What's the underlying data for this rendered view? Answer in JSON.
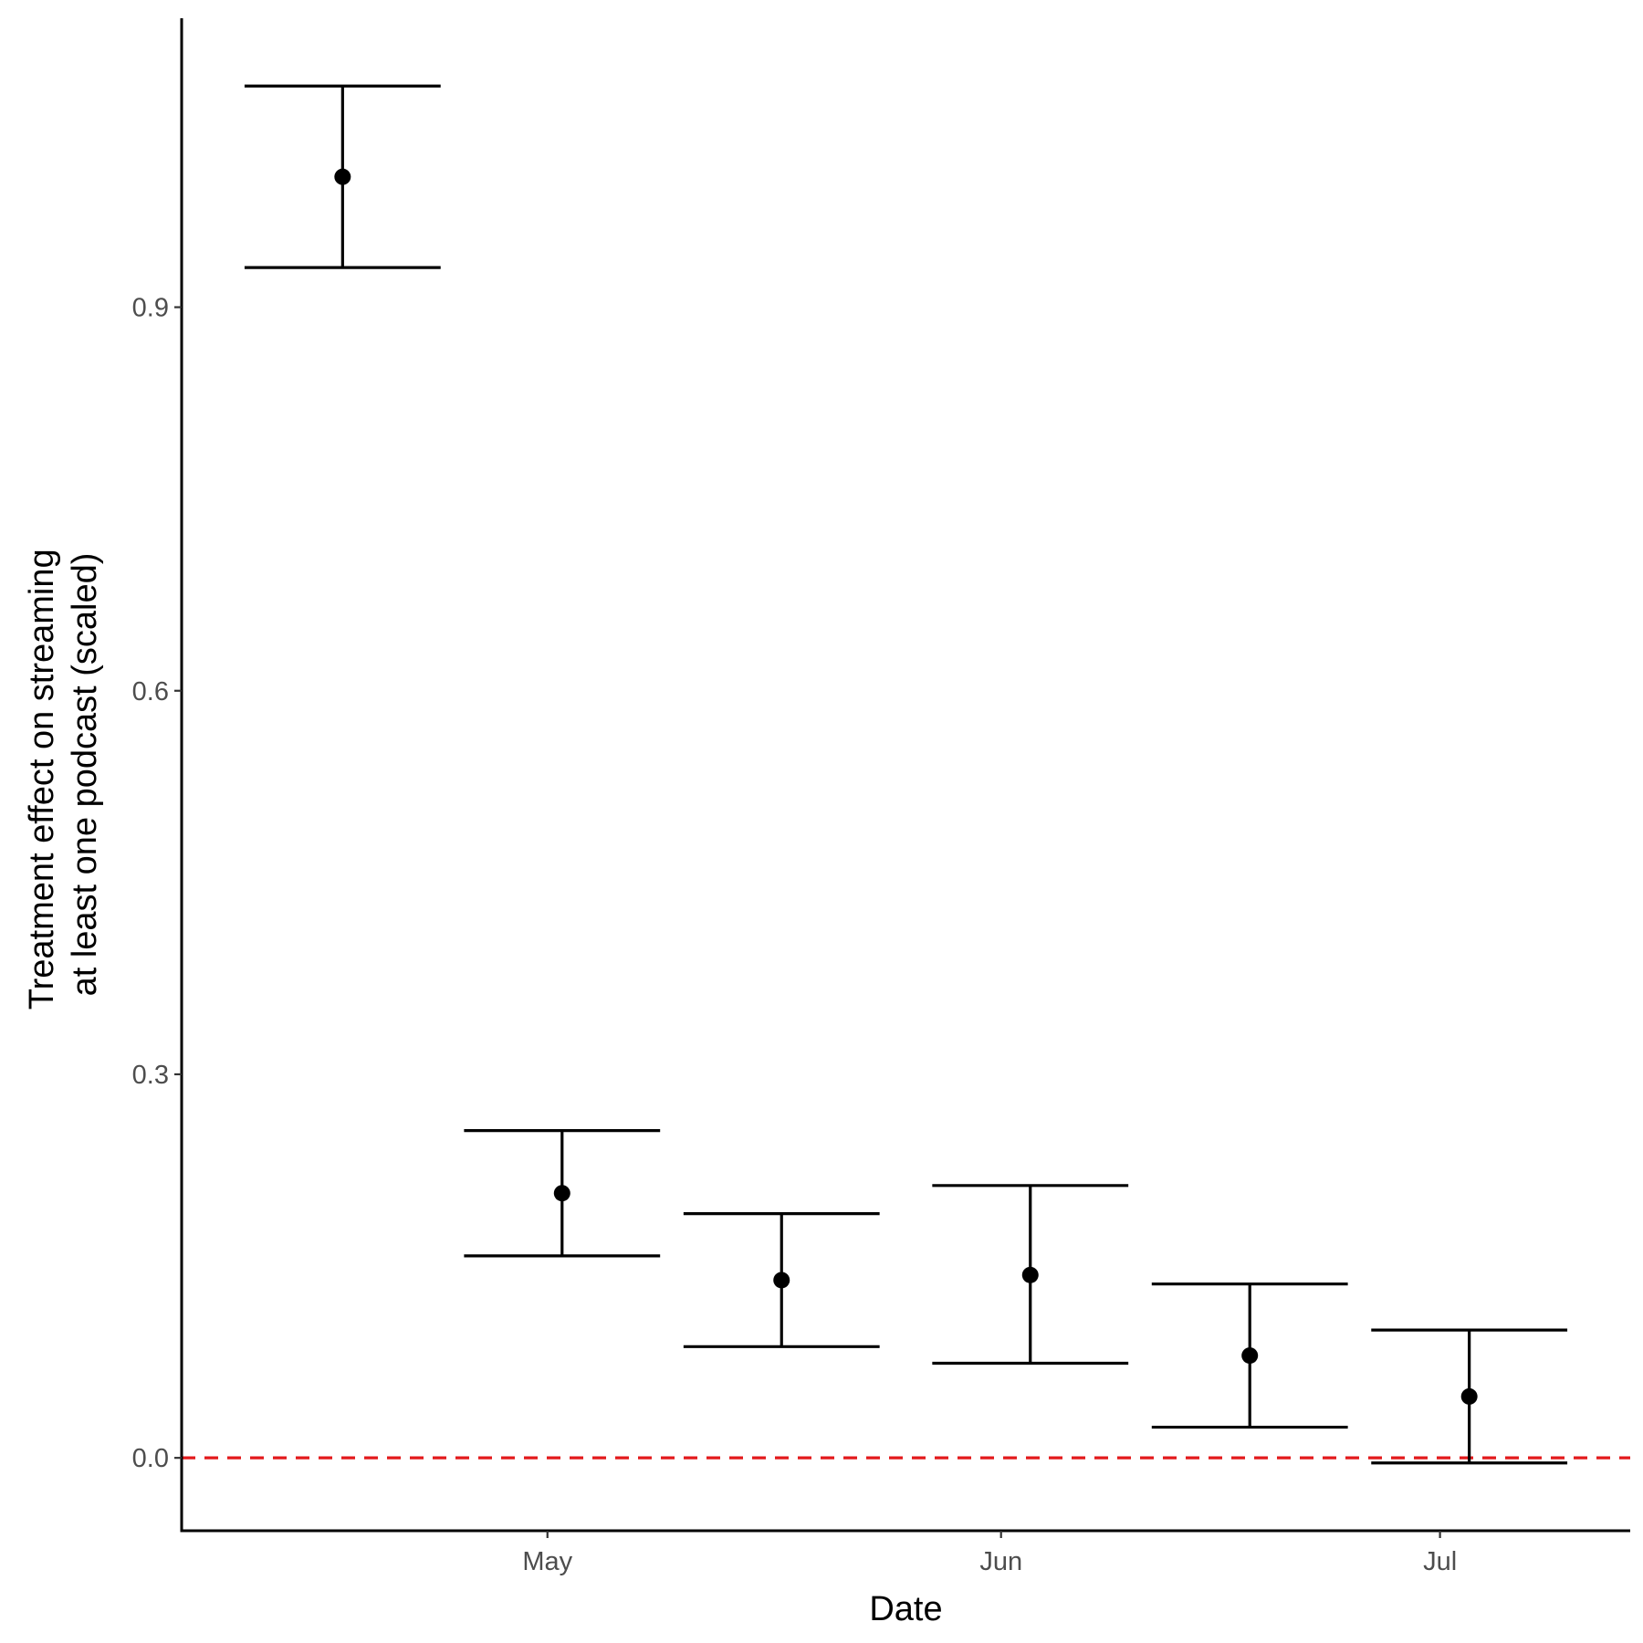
{
  "chart_data": {
    "type": "scatter",
    "title": "",
    "xlabel": "Date",
    "ylabel_lines": [
      "Treatment effect on streaming",
      "at least one podcast (scaled)"
    ],
    "x_ticks": [
      {
        "label": "May",
        "date": "2019-05-01"
      },
      {
        "label": "Jun",
        "date": "2019-06-01"
      },
      {
        "label": "Jul",
        "date": "2019-07-01"
      }
    ],
    "y_ticks": [
      0.0,
      0.3,
      0.6,
      0.9
    ],
    "y_tick_labels": [
      "0.0",
      "0.3",
      "0.6",
      "0.9"
    ],
    "xlim": [
      "2019-04-06",
      "2019-07-14"
    ],
    "ylim": [
      -0.057,
      1.126
    ],
    "points": [
      {
        "x": "2019-04-17",
        "y": 1.002,
        "ymin": 0.931,
        "ymax": 1.073
      },
      {
        "x": "2019-05-02",
        "y": 0.207,
        "ymin": 0.158,
        "ymax": 0.256
      },
      {
        "x": "2019-05-17",
        "y": 0.139,
        "ymin": 0.087,
        "ymax": 0.191
      },
      {
        "x": "2019-06-03",
        "y": 0.143,
        "ymin": 0.074,
        "ymax": 0.213
      },
      {
        "x": "2019-06-18",
        "y": 0.08,
        "ymin": 0.024,
        "ymax": 0.136
      },
      {
        "x": "2019-07-03",
        "y": 0.048,
        "ymin": -0.004,
        "ymax": 0.1
      }
    ],
    "errorbar_halfwidth_days": 6.7,
    "reference_line": {
      "y": 0,
      "style": "dashed",
      "color": "#e31a1c"
    },
    "point_color": "#000000",
    "grid": false,
    "legend": "none"
  }
}
